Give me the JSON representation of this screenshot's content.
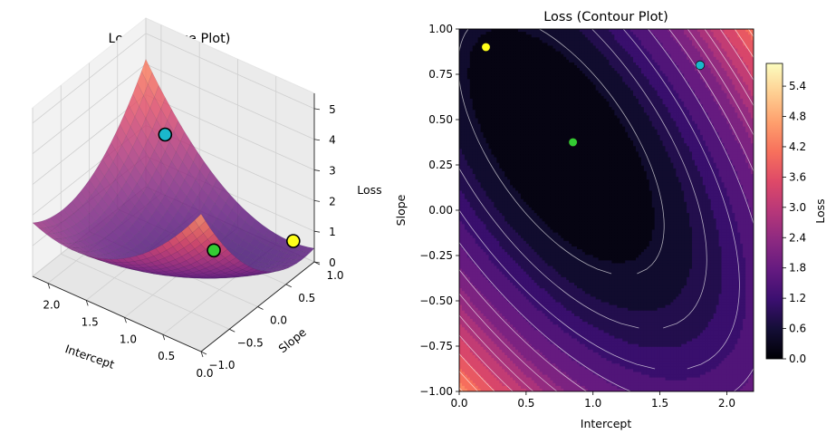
{
  "chart_data": [
    {
      "type": "surface",
      "title": "Loss (Surface Plot)",
      "xlabel": "Intercept",
      "ylabel": "Slope",
      "zlabel": "Loss",
      "xlim": [
        0.0,
        2.2
      ],
      "ylim": [
        -1.0,
        1.0
      ],
      "zlim": [
        0,
        5.5
      ],
      "x_ticks": [
        "0.0",
        "0.5",
        "1.0",
        "1.5",
        "2.0"
      ],
      "y_ticks": [
        "−1.0",
        "−0.5",
        "0.0",
        "0.5",
        "1.0"
      ],
      "z_ticks": [
        "0",
        "1",
        "2",
        "3",
        "4",
        "5"
      ],
      "colormap": "magma",
      "points": [
        {
          "intercept": 0.2,
          "slope": 0.9,
          "color": "#ffff1a"
        },
        {
          "intercept": 0.85,
          "slope": 0.375,
          "color": "#33cc33"
        },
        {
          "intercept": 1.8,
          "slope": 0.8,
          "color": "#1ab8cc"
        }
      ]
    },
    {
      "type": "contour",
      "title": "Loss (Contour Plot)",
      "xlabel": "Intercept",
      "ylabel": "Slope",
      "colorbar_label": "Loss",
      "xlim": [
        0.0,
        2.2
      ],
      "ylim": [
        -1.0,
        1.0
      ],
      "x_ticks": [
        "0.0",
        "0.5",
        "1.0",
        "1.5",
        "2.0"
      ],
      "y_ticks": [
        "−1.00",
        "−0.75",
        "−0.50",
        "−0.25",
        "0.00",
        "0.25",
        "0.50",
        "0.75",
        "1.00"
      ],
      "colorbar_ticks": [
        "0.0",
        "0.6",
        "1.2",
        "1.8",
        "2.4",
        "3.0",
        "3.6",
        "4.2",
        "4.8",
        "5.4"
      ],
      "colorbar_range": [
        0,
        5.85
      ],
      "colormap": "magma",
      "points": [
        {
          "intercept": 0.2,
          "slope": 0.9,
          "color": "#ffff1a"
        },
        {
          "intercept": 0.85,
          "slope": 0.375,
          "color": "#33cc33"
        },
        {
          "intercept": 1.8,
          "slope": 0.8,
          "color": "#1ab8cc"
        }
      ]
    }
  ]
}
